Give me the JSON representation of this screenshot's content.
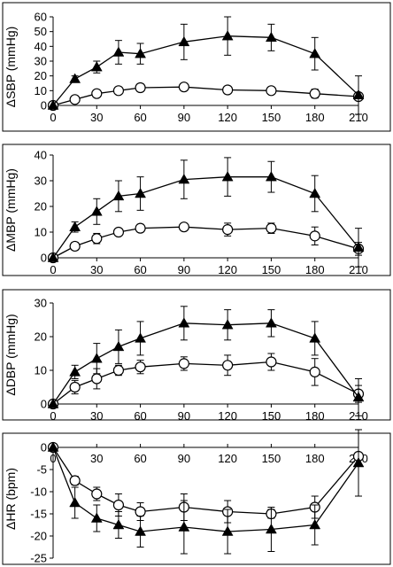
{
  "chart_data": [
    {
      "type": "line",
      "ylabel": "ΔSBP (mmHg)",
      "ylim": [
        0,
        60
      ],
      "yticks": [
        "0",
        "10",
        "20",
        "30",
        "40",
        "50",
        "60"
      ],
      "xlim": [
        0,
        210
      ],
      "xticks": [
        "0",
        "30",
        "60",
        "90",
        "120",
        "150",
        "180",
        "210"
      ],
      "x_axis_at": 0,
      "series": [
        {
          "marker": "triangle",
          "x": [
            0,
            15,
            30,
            45,
            60,
            90,
            120,
            150,
            180,
            210
          ],
          "values": [
            0,
            18,
            26,
            36,
            35,
            43,
            47,
            46,
            35,
            7
          ],
          "err": [
            0,
            2,
            4,
            8,
            7,
            12,
            13,
            9,
            11,
            13
          ]
        },
        {
          "marker": "circle",
          "x": [
            0,
            15,
            30,
            45,
            60,
            90,
            120,
            150,
            180,
            210
          ],
          "values": [
            0,
            4,
            8,
            10,
            12,
            12.5,
            10.5,
            10,
            8,
            6
          ],
          "err": [
            0,
            1,
            1.5,
            1.5,
            2.5,
            1.5,
            1.5,
            1.5,
            3,
            2
          ]
        }
      ]
    },
    {
      "type": "line",
      "ylabel": "ΔMBP (mmHg)",
      "ylim": [
        0,
        40
      ],
      "yticks": [
        "0",
        "10",
        "20",
        "30",
        "40"
      ],
      "xlim": [
        0,
        210
      ],
      "xticks": [
        "0",
        "30",
        "60",
        "90",
        "120",
        "150",
        "180",
        "210"
      ],
      "x_axis_at": 0,
      "series": [
        {
          "marker": "triangle",
          "x": [
            0,
            15,
            30,
            45,
            60,
            90,
            120,
            150,
            180,
            210
          ],
          "values": [
            0,
            12,
            18,
            24,
            25,
            30.5,
            31.5,
            31.5,
            25,
            4
          ],
          "err": [
            0,
            2,
            5,
            6,
            6.5,
            7.5,
            7.5,
            6,
            7,
            7.5
          ]
        },
        {
          "marker": "circle",
          "x": [
            0,
            15,
            30,
            45,
            60,
            90,
            120,
            150,
            180,
            210
          ],
          "values": [
            0,
            4.5,
            7.5,
            10,
            11.5,
            12,
            11,
            11.5,
            8.5,
            3.5
          ],
          "err": [
            0,
            1.5,
            2,
            1,
            1.5,
            1,
            2.5,
            2,
            3.5,
            2.5
          ]
        }
      ]
    },
    {
      "type": "line",
      "ylabel": "ΔDBP (mmHg)",
      "ylim": [
        0,
        30
      ],
      "yticks": [
        "0",
        "10",
        "20",
        "30"
      ],
      "xlim": [
        0,
        210
      ],
      "xticks": [
        "0",
        "30",
        "60",
        "90",
        "120",
        "150",
        "180",
        "210"
      ],
      "x_axis_at": 0,
      "series": [
        {
          "marker": "triangle",
          "x": [
            0,
            15,
            30,
            45,
            60,
            90,
            120,
            150,
            180,
            210
          ],
          "values": [
            0,
            9.5,
            13.5,
            17,
            19.5,
            24,
            23.5,
            24,
            19.5,
            2
          ],
          "err": [
            0,
            2,
            4.5,
            5,
            5,
            5,
            4.5,
            4,
            5,
            5.5
          ]
        },
        {
          "marker": "circle",
          "x": [
            0,
            15,
            30,
            45,
            60,
            90,
            120,
            150,
            180,
            210
          ],
          "values": [
            0,
            5,
            7.5,
            10,
            11,
            12,
            11.5,
            12.5,
            9.5,
            3
          ],
          "err": [
            0,
            2,
            3,
            1.5,
            2,
            2,
            3,
            2.5,
            4,
            2.5
          ]
        }
      ]
    },
    {
      "type": "line",
      "ylabel": "ΔHR (bpm)",
      "ylim": [
        -25,
        0
      ],
      "yticks": [
        "-25",
        "-20",
        "-15",
        "-10",
        "-5",
        "0"
      ],
      "xlim": [
        0,
        210
      ],
      "xticks": [
        "0",
        "30",
        "60",
        "90",
        "120",
        "150",
        "180",
        "210"
      ],
      "x_axis_at": 0,
      "series": [
        {
          "marker": "triangle",
          "x": [
            0,
            15,
            30,
            45,
            60,
            90,
            120,
            150,
            180,
            210
          ],
          "values": [
            0,
            -12.5,
            -16,
            -17.5,
            -19,
            -18,
            -19,
            -18.5,
            -17.5,
            -3.5
          ],
          "err": [
            0,
            3.5,
            3,
            3,
            3.5,
            6,
            5,
            5,
            4.5,
            7.5
          ]
        },
        {
          "marker": "circle",
          "x": [
            0,
            15,
            30,
            45,
            60,
            90,
            120,
            150,
            180,
            210
          ],
          "values": [
            0,
            -7.5,
            -10.5,
            -13,
            -14.5,
            -13.5,
            -14.5,
            -15,
            -13.5,
            -2
          ],
          "err": [
            0,
            1,
            1.5,
            2.5,
            2,
            3,
            2.5,
            1,
            2.5,
            0.5
          ]
        }
      ]
    }
  ]
}
